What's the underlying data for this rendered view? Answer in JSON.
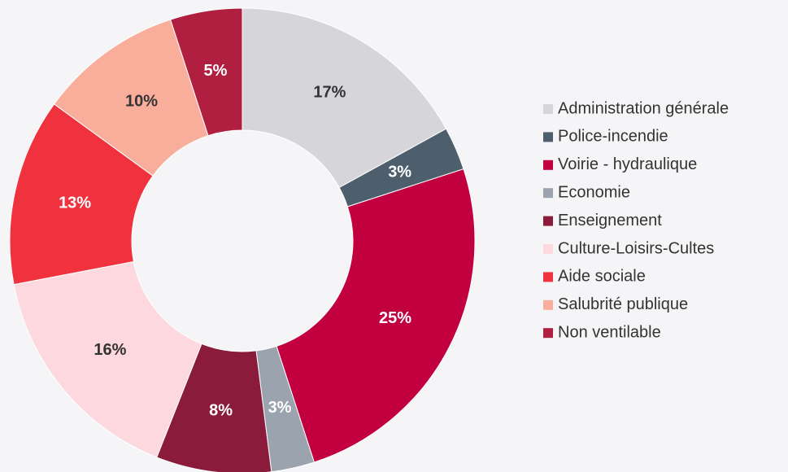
{
  "chart_data": {
    "type": "donut",
    "categories": [
      "Administration générale",
      "Police-incendie",
      "Voirie - hydraulique",
      "Economie",
      "Enseignement",
      "Culture-Loisirs-Cultes",
      "Aide sociale",
      "Salubrité publique",
      "Non ventilable"
    ],
    "values": [
      17,
      3,
      25,
      3,
      8,
      16,
      13,
      10,
      5
    ],
    "value_labels": [
      "17%",
      "3%",
      "25%",
      "3%",
      "8%",
      "16%",
      "13%",
      "10%",
      "5%"
    ],
    "colors": [
      "#d5d5da",
      "#4d5e6d",
      "#c2003f",
      "#9aa3ae",
      "#8a1b3b",
      "#fdd9df",
      "#f0323f",
      "#f9ae9c",
      "#b01f40"
    ],
    "legend": "right"
  }
}
